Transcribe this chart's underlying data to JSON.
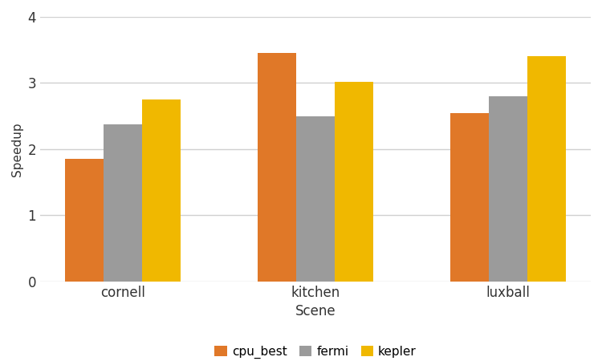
{
  "categories": [
    "cornell",
    "kitchen",
    "luxball"
  ],
  "series": {
    "cpu_best": [
      1.85,
      3.45,
      2.55
    ],
    "fermi": [
      2.38,
      2.5,
      2.8
    ],
    "kepler": [
      2.75,
      3.02,
      3.4
    ]
  },
  "colors": {
    "cpu_best": "#E07828",
    "fermi": "#9B9B9B",
    "kepler": "#F0B800"
  },
  "xlabel": "Scene",
  "ylabel": "Speedup",
  "ylim": [
    0,
    4
  ],
  "yticks": [
    0,
    1,
    2,
    3,
    4
  ],
  "legend_labels": [
    "cpu_best",
    "fermi",
    "kepler"
  ],
  "bar_width": 0.2,
  "figsize": [
    7.5,
    4.5
  ],
  "dpi": 100,
  "background_color": "#FFFFFF",
  "grid_color": "#D0D0D0"
}
